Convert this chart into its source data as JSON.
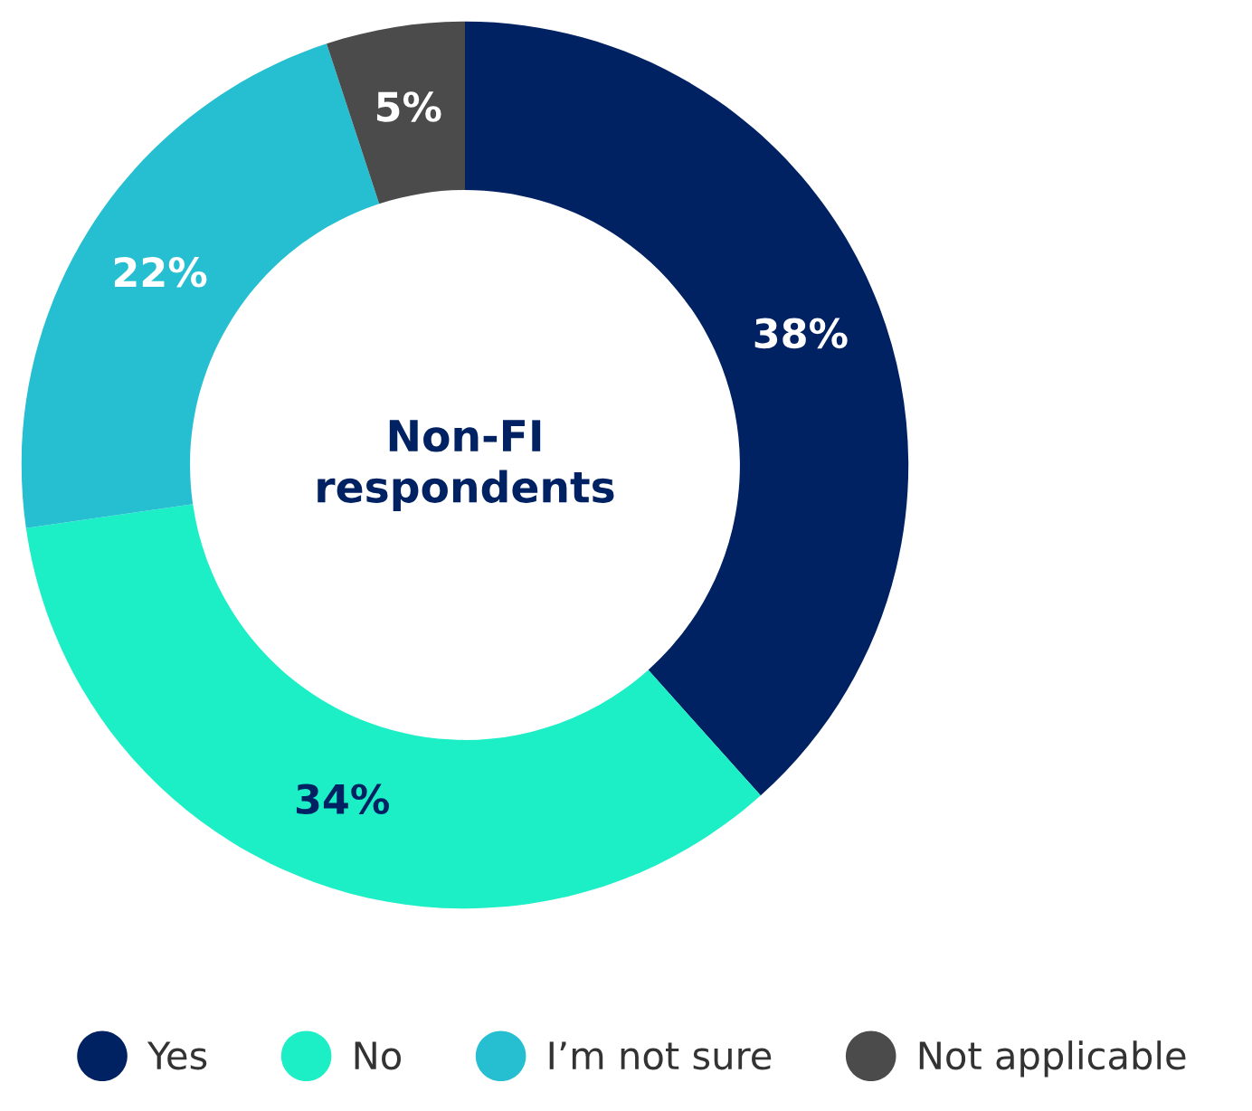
{
  "chart_data": {
    "type": "donut",
    "categories": [
      "Yes",
      "No",
      "I’m not sure",
      "Not applicable"
    ],
    "values": [
      38,
      34,
      22,
      5
    ],
    "colors": [
      "#002263",
      "#1ceec6",
      "#26bfd1",
      "#4b4b4b"
    ],
    "value_labels": [
      "38%",
      "34%",
      "22%",
      "5%"
    ],
    "annotations": [
      "Non-FI\nrespondents"
    ],
    "legend": "bottom"
  }
}
